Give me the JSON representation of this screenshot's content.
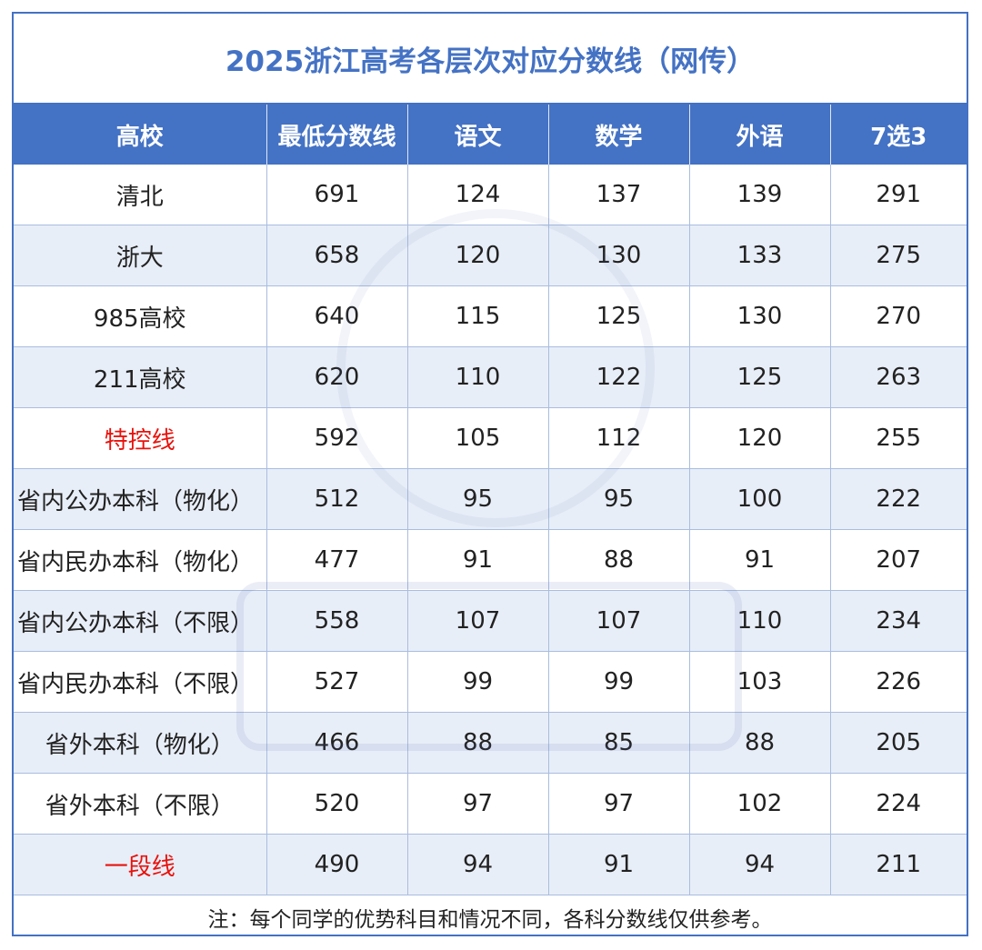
{
  "title": "2025浙江高考各层次对应分数线（网传）",
  "headers": [
    "高校",
    "最低分数线",
    "语文",
    "数学",
    "外语",
    "7选3"
  ],
  "rows": [
    {
      "name": "清北",
      "min": "691",
      "chinese": "124",
      "math": "137",
      "foreign": "139",
      "elective": "291"
    },
    {
      "name": "浙大",
      "min": "658",
      "chinese": "120",
      "math": "130",
      "foreign": "133",
      "elective": "275"
    },
    {
      "name": "985高校",
      "min": "640",
      "chinese": "115",
      "math": "125",
      "foreign": "130",
      "elective": "270"
    },
    {
      "name": "211高校",
      "min": "620",
      "chinese": "110",
      "math": "122",
      "foreign": "125",
      "elective": "263"
    },
    {
      "name": "特控线",
      "min": "592",
      "chinese": "105",
      "math": "112",
      "foreign": "120",
      "elective": "255"
    },
    {
      "name": "省内公办本科（物化）",
      "min": "512",
      "chinese": "95",
      "math": "95",
      "foreign": "100",
      "elective": "222"
    },
    {
      "name": "省内民办本科（物化）",
      "min": "477",
      "chinese": "91",
      "math": "88",
      "foreign": "91",
      "elective": "207"
    },
    {
      "name": "省内公办本科（不限）",
      "min": "558",
      "chinese": "107",
      "math": "107",
      "foreign": "110",
      "elective": "234"
    },
    {
      "name": "省内民办本科（不限）",
      "min": "527",
      "chinese": "99",
      "math": "99",
      "foreign": "103",
      "elective": "226"
    },
    {
      "name": "省外本科（物化）",
      "min": "466",
      "chinese": "88",
      "math": "85",
      "foreign": "88",
      "elective": "205"
    },
    {
      "name": "省外本科（不限）",
      "min": "520",
      "chinese": "97",
      "math": "97",
      "foreign": "102",
      "elective": "224"
    },
    {
      "name": "一段线",
      "min": "490",
      "chinese": "94",
      "math": "91",
      "foreign": "94",
      "elective": "211"
    }
  ],
  "note": "注：每个同学的优势科目和情况不同，各科分数线仅供参考。",
  "colors": {
    "header_bg": "#4472c4",
    "title_text": "#4472c4",
    "alt_row_bg": "#e8eef8",
    "highlight_text": "#e8120c"
  }
}
